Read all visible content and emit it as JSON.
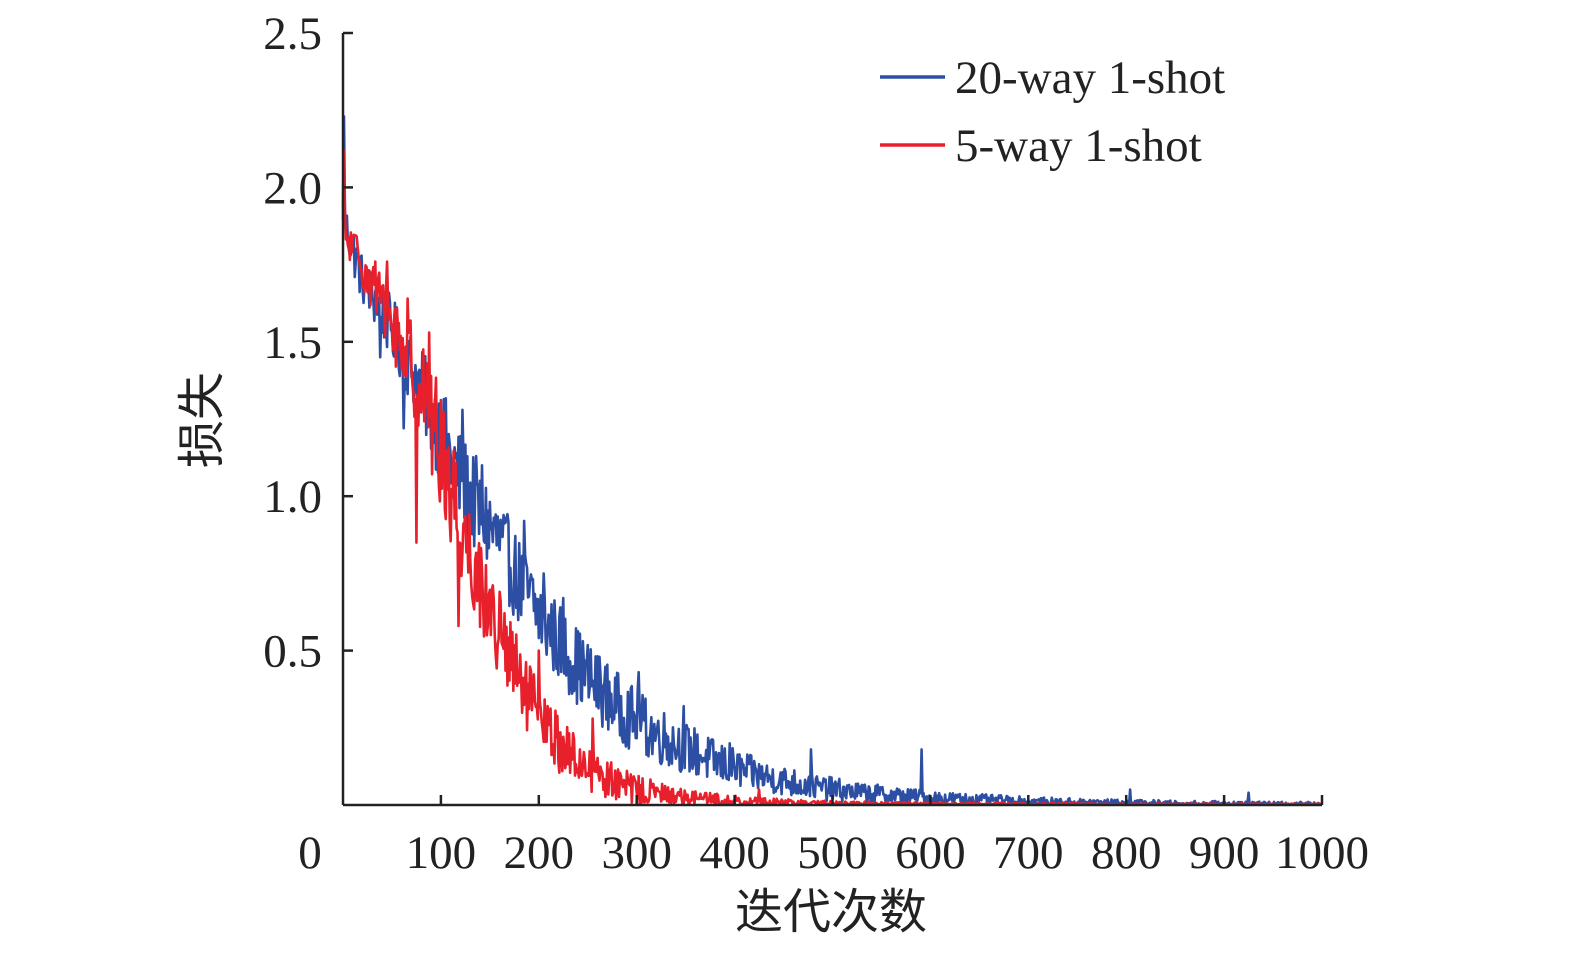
{
  "chart_data": {
    "type": "line",
    "title": "",
    "xlabel": "迭代次数",
    "ylabel": "损失",
    "xlim": [
      0,
      1000
    ],
    "ylim": [
      0,
      2.5
    ],
    "x_ticks": [
      0,
      100,
      200,
      300,
      400,
      500,
      600,
      700,
      800,
      900,
      1000
    ],
    "x_tick_labels": [
      "0",
      "100",
      "200",
      "300",
      "400",
      "500",
      "600",
      "700",
      "800",
      "900",
      "1000"
    ],
    "y_ticks": [
      0.5,
      1.0,
      1.5,
      2.0,
      2.5
    ],
    "y_tick_labels": [
      "0.5",
      "1.0",
      "1.5",
      "2.0",
      "2.5"
    ],
    "grid": false,
    "legend_position": "top-right",
    "series": [
      {
        "name": "20-way 1-shot",
        "color": "#2c4ea3",
        "x": [
          0,
          20,
          40,
          60,
          80,
          100,
          120,
          140,
          160,
          180,
          200,
          220,
          240,
          260,
          280,
          300,
          320,
          340,
          360,
          380,
          400,
          420,
          440,
          460,
          480,
          500,
          520,
          540,
          560,
          580,
          600,
          620,
          640,
          660,
          680,
          700,
          720,
          740,
          760,
          780,
          800,
          820,
          840,
          860,
          880,
          900,
          920,
          940,
          960,
          980,
          1000
        ],
        "y": [
          1.9,
          1.7,
          1.6,
          1.48,
          1.35,
          1.2,
          1.05,
          0.95,
          0.85,
          0.72,
          0.62,
          0.53,
          0.45,
          0.38,
          0.32,
          0.27,
          0.23,
          0.2,
          0.17,
          0.14,
          0.12,
          0.1,
          0.085,
          0.072,
          0.06,
          0.05,
          0.043,
          0.037,
          0.032,
          0.028,
          0.024,
          0.021,
          0.018,
          0.016,
          0.014,
          0.012,
          0.011,
          0.01,
          0.009,
          0.008,
          0.007,
          0.007,
          0.006,
          0.006,
          0.005,
          0.005,
          0.005,
          0.004,
          0.004,
          0.004,
          0.004
        ],
        "noise_amplitude": [
          0.05,
          0.05,
          0.06,
          0.07,
          0.08,
          0.1,
          0.1,
          0.1,
          0.09,
          0.09,
          0.09,
          0.08,
          0.08,
          0.07,
          0.07,
          0.065,
          0.06,
          0.055,
          0.05,
          0.045,
          0.04,
          0.035,
          0.03,
          0.03,
          0.025,
          0.025,
          0.02,
          0.02,
          0.018,
          0.016,
          0.015,
          0.013,
          0.012,
          0.011,
          0.01,
          0.009,
          0.008,
          0.008,
          0.007,
          0.007,
          0.006,
          0.006,
          0.006,
          0.005,
          0.005,
          0.005,
          0.005,
          0.004,
          0.004,
          0.004,
          0.004
        ],
        "spikes": [
          [
            1,
            2.23
          ],
          [
            38,
            1.45
          ],
          [
            62,
            1.22
          ],
          [
            98,
            1.3
          ],
          [
            122,
            1.28
          ],
          [
            142,
            1.1
          ],
          [
            185,
            0.92
          ],
          [
            205,
            0.75
          ],
          [
            225,
            0.67
          ],
          [
            262,
            0.48
          ],
          [
            302,
            0.43
          ],
          [
            348,
            0.32
          ],
          [
            395,
            0.2
          ],
          [
            478,
            0.18
          ],
          [
            591,
            0.18
          ],
          [
            804,
            0.05
          ],
          [
            925,
            0.04
          ]
        ]
      },
      {
        "name": "5-way 1-shot",
        "color": "#e8202b",
        "x": [
          0,
          20,
          40,
          60,
          80,
          100,
          120,
          140,
          160,
          180,
          200,
          220,
          240,
          260,
          280,
          300,
          320,
          340,
          360,
          380,
          400,
          420,
          440,
          460,
          480,
          500,
          520,
          540,
          560,
          580,
          600,
          620,
          640,
          660,
          680,
          700,
          720,
          740,
          760,
          780,
          800,
          820,
          840,
          860,
          880,
          900,
          920,
          940,
          960,
          980,
          1000
        ],
        "y": [
          1.85,
          1.75,
          1.62,
          1.5,
          1.35,
          1.15,
          0.92,
          0.72,
          0.55,
          0.4,
          0.28,
          0.2,
          0.14,
          0.1,
          0.07,
          0.05,
          0.038,
          0.028,
          0.022,
          0.017,
          0.013,
          0.01,
          0.008,
          0.007,
          0.006,
          0.005,
          0.005,
          0.004,
          0.004,
          0.004,
          0.003,
          0.003,
          0.003,
          0.003,
          0.003,
          0.003,
          0.003,
          0.003,
          0.002,
          0.002,
          0.002,
          0.002,
          0.002,
          0.002,
          0.002,
          0.002,
          0.002,
          0.002,
          0.002,
          0.002,
          0.002
        ],
        "noise_amplitude": [
          0.05,
          0.05,
          0.06,
          0.08,
          0.1,
          0.12,
          0.12,
          0.1,
          0.09,
          0.08,
          0.07,
          0.06,
          0.05,
          0.045,
          0.035,
          0.03,
          0.025,
          0.02,
          0.016,
          0.013,
          0.011,
          0.009,
          0.008,
          0.007,
          0.006,
          0.005,
          0.005,
          0.004,
          0.004,
          0.004,
          0.003,
          0.003,
          0.003,
          0.003,
          0.003,
          0.003,
          0.003,
          0.003,
          0.002,
          0.002,
          0.002,
          0.002,
          0.002,
          0.002,
          0.002,
          0.002,
          0.002,
          0.002,
          0.002,
          0.002,
          0.002
        ],
        "spikes": [
          [
            1,
            2.12
          ],
          [
            33,
            1.76
          ],
          [
            45,
            1.76
          ],
          [
            66,
            1.64
          ],
          [
            88,
            1.53
          ],
          [
            75,
            0.85
          ],
          [
            118,
            0.58
          ],
          [
            155,
            0.55
          ],
          [
            200,
            0.5
          ],
          [
            255,
            0.28
          ],
          [
            425,
            0.05
          ]
        ]
      }
    ]
  }
}
